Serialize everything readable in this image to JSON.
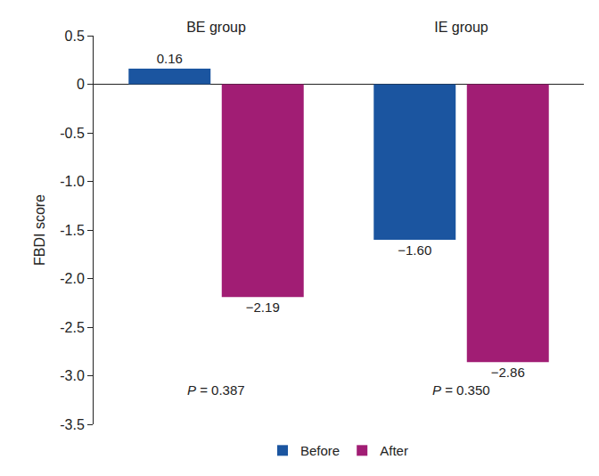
{
  "chart_data": {
    "type": "bar",
    "categories": [
      "BE group",
      "IE group"
    ],
    "series": [
      {
        "name": "Before",
        "color": "#1b55a0",
        "values": [
          0.16,
          -1.6
        ],
        "value_labels": [
          "0.16",
          "−1.60"
        ]
      },
      {
        "name": "After",
        "color": "#a11d74",
        "values": [
          -2.19,
          -2.86
        ],
        "value_labels": [
          "−2.19",
          "−2.86"
        ]
      }
    ],
    "y_label": "FBDI score",
    "ylim": [
      -3.5,
      0.5
    ],
    "yticks": [
      0.5,
      0,
      -0.5,
      {
        "value": -1,
        "label": "-1.0"
      },
      -1.5,
      {
        "value": -2,
        "label": "-2.0"
      },
      -2.5,
      {
        "value": -3,
        "label": "-3.0"
      },
      -3.5
    ],
    "annotations": [
      {
        "text": "P = 0.387",
        "category": "BE group",
        "y": -3.15
      },
      {
        "text": "P = 0.350",
        "category": "IE group",
        "y": -3.15
      }
    ],
    "data_labels": true,
    "grid": false,
    "legend": "bottom"
  }
}
